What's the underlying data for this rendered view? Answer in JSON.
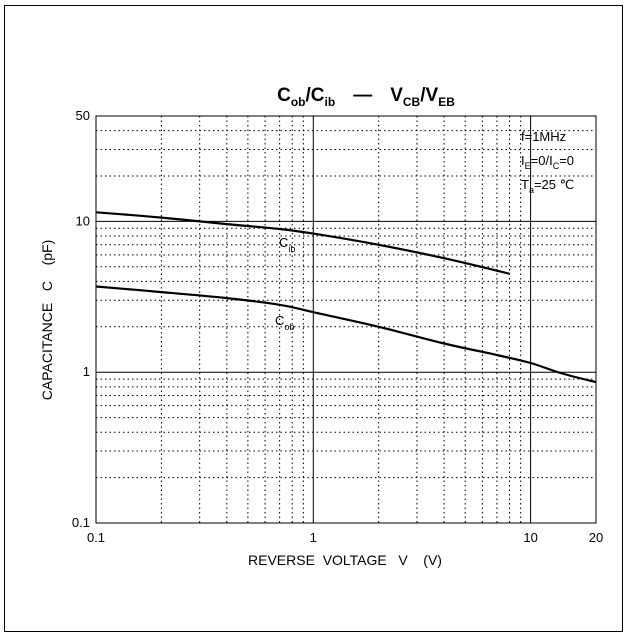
{
  "chart_data": {
    "type": "line",
    "title": {
      "part1": {
        "main": "C",
        "sub": "ob"
      },
      "sep": "/",
      "part2": {
        "main": "C",
        "sub": "ib"
      },
      "dash": "—",
      "part3": {
        "main": "V",
        "sub": "CB"
      },
      "part4": {
        "main": "V",
        "sub": "EB"
      }
    },
    "xlabel": "REVERSE  VOLTAGE   V    (V)",
    "ylabel": "CAPACITANCE   C    (pF)",
    "x_scale": "log",
    "y_scale": "log",
    "xlim": [
      0.1,
      20
    ],
    "ylim": [
      0.1,
      50
    ],
    "x_ticks": [
      {
        "value": 0.1,
        "label": "0.1"
      },
      {
        "value": 1,
        "label": "1"
      },
      {
        "value": 10,
        "label": "10"
      },
      {
        "value": 20,
        "label": "20"
      }
    ],
    "y_ticks": [
      {
        "value": 0.1,
        "label": "0.1"
      },
      {
        "value": 1,
        "label": "1"
      },
      {
        "value": 10,
        "label": "10"
      },
      {
        "value": 50,
        "label": "50"
      }
    ],
    "grid": true,
    "conditions": {
      "line1": "f=1MHz",
      "line2": {
        "a": "I",
        "a_sub": "E",
        "b": "=0/I",
        "b_sub": "C",
        "c": "=0"
      },
      "line3": {
        "a": "T",
        "a_sub": "a",
        "b": "=25 ℃"
      }
    },
    "series": [
      {
        "name": "C_ib",
        "label_main": "C",
        "label_sub": "ib",
        "x": [
          0.1,
          0.2,
          0.4,
          0.7,
          1,
          2,
          4,
          8
        ],
        "y": [
          11.5,
          10.6,
          9.6,
          8.9,
          8.3,
          7.0,
          5.7,
          4.5
        ]
      },
      {
        "name": "C_ob",
        "label_main": "C",
        "label_sub": "ob",
        "x": [
          0.1,
          0.2,
          0.4,
          0.7,
          1,
          2,
          4,
          7,
          10,
          14,
          20
        ],
        "y": [
          3.7,
          3.4,
          3.1,
          2.8,
          2.5,
          2.0,
          1.55,
          1.3,
          1.15,
          0.98,
          0.86
        ]
      }
    ]
  }
}
